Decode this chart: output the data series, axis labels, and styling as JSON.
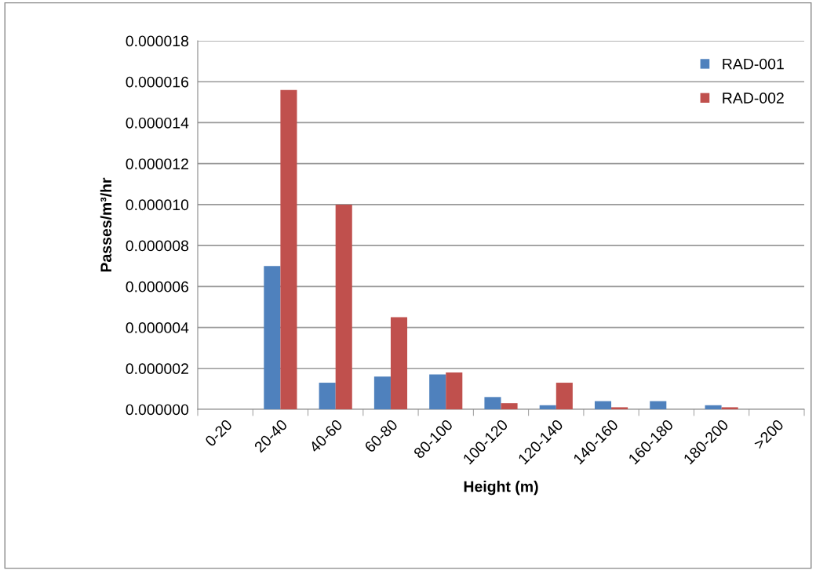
{
  "chart_data": {
    "type": "bar",
    "xlabel": "Height (m)",
    "ylabel": "Passes/m³/hr",
    "categories": [
      "0-20",
      "20-40",
      "40-60",
      "60-80",
      "80-100",
      "100-120",
      "120-140",
      "140-160",
      "160-180",
      "180-200",
      ">200"
    ],
    "series": [
      {
        "name": "RAD-001",
        "color": "#4f81bd",
        "values": [
          0,
          7e-06,
          1.3e-06,
          1.6e-06,
          1.7e-06,
          6e-07,
          2e-07,
          4e-07,
          4e-07,
          2e-07,
          0
        ]
      },
      {
        "name": "RAD-002",
        "color": "#c0504d",
        "values": [
          0,
          1.56e-05,
          1e-05,
          4.5e-06,
          1.8e-06,
          3e-07,
          1.3e-06,
          1e-07,
          0,
          1e-07,
          0
        ]
      }
    ],
    "ylim": [
      0,
      1.8e-05
    ],
    "yticks": [
      {
        "value": 0,
        "label": "0.000000"
      },
      {
        "value": 2e-06,
        "label": "0.000002"
      },
      {
        "value": 4e-06,
        "label": "0.000004"
      },
      {
        "value": 6e-06,
        "label": "0.000006"
      },
      {
        "value": 8e-06,
        "label": "0.000008"
      },
      {
        "value": 1e-05,
        "label": "0.000010"
      },
      {
        "value": 1.2e-05,
        "label": "0.000012"
      },
      {
        "value": 1.4e-05,
        "label": "0.000014"
      },
      {
        "value": 1.6e-05,
        "label": "0.000016"
      },
      {
        "value": 1.8e-05,
        "label": "0.000018"
      }
    ],
    "grid": "y",
    "legend": "top right"
  }
}
